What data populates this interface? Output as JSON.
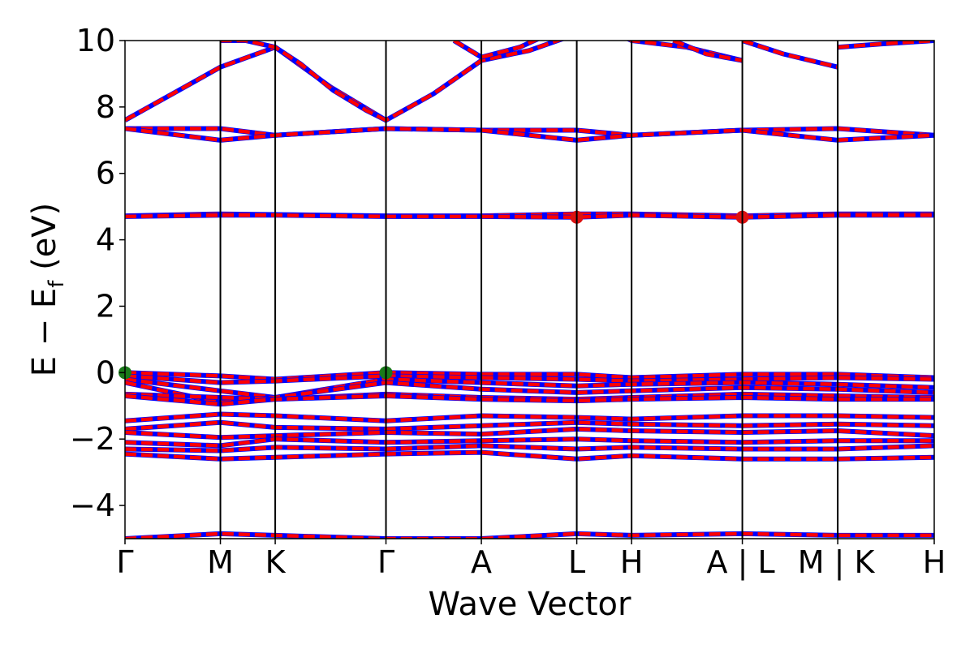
{
  "chart_data": {
    "type": "line",
    "title": "",
    "xlabel": "Wave Vector",
    "ylabel_main": "E − E",
    "ylabel_sub": "f",
    "ylabel_unit": " (eV)",
    "ylim": [
      -5,
      10
    ],
    "y_ticks": [
      {
        "value": -4,
        "label": "−4"
      },
      {
        "value": -2,
        "label": "−2"
      },
      {
        "value": 0,
        "label": "0"
      },
      {
        "value": 2,
        "label": "2"
      },
      {
        "value": 4,
        "label": "4"
      },
      {
        "value": 6,
        "label": "6"
      },
      {
        "value": 8,
        "label": "8"
      },
      {
        "value": 10,
        "label": "10"
      }
    ],
    "xlim": [
      0,
      7.38
    ],
    "kpoints": [
      {
        "x": 0.0,
        "label": "Γ"
      },
      {
        "x": 0.87,
        "label": "M"
      },
      {
        "x": 1.37,
        "label": "K"
      },
      {
        "x": 2.38,
        "label": "Γ"
      },
      {
        "x": 3.25,
        "label": "A"
      },
      {
        "x": 4.12,
        "label": "L"
      },
      {
        "x": 4.62,
        "label": "H"
      },
      {
        "x": 5.63,
        "label": "A | L"
      },
      {
        "x": 6.5,
        "label": "M | K"
      },
      {
        "x": 7.38,
        "label": "H"
      }
    ],
    "path_break_x": [
      5.63,
      6.5
    ],
    "band_colors": {
      "spin_up": "#ff0000",
      "spin_down": "#0000ff"
    },
    "series": [
      {
        "x": [
          0,
          0.435,
          0.87,
          1.37,
          1.875,
          2.38,
          2.815,
          3.25,
          3.685,
          4.12,
          4.37,
          4.62,
          5.125,
          5.63
        ],
        "y": [
          7.6,
          8.4,
          9.2,
          9.8,
          8.6,
          7.6,
          8.4,
          9.4,
          9.7,
          10.2,
          10.4,
          10.0,
          9.8,
          9.4
        ]
      },
      {
        "x": [
          0.87,
          1.1,
          1.37,
          1.6,
          1.9,
          2.2,
          2.38
        ],
        "y": [
          10.0,
          10.0,
          9.8,
          9.3,
          8.5,
          7.9,
          7.6
        ]
      },
      {
        "x": [
          3.0,
          3.25,
          3.6,
          3.8
        ],
        "y": [
          10.0,
          9.5,
          9.8,
          10.1
        ]
      },
      {
        "x": [
          5.0,
          5.3,
          5.63
        ],
        "y": [
          10.0,
          9.6,
          9.4
        ]
      },
      {
        "x": [
          5.63,
          6.0,
          6.5
        ],
        "y": [
          10.0,
          9.6,
          9.2
        ]
      },
      {
        "x": [
          6.5,
          6.9,
          7.38
        ],
        "y": [
          9.8,
          9.9,
          10.0
        ]
      },
      {
        "x": [
          0,
          0.87,
          1.37,
          2.38,
          3.25,
          4.12,
          4.62,
          5.63,
          6.5,
          7.38
        ],
        "y": [
          7.35,
          7.35,
          7.15,
          7.35,
          7.3,
          7.3,
          7.15,
          7.3,
          7.35,
          7.15
        ]
      },
      {
        "x": [
          0,
          0.87,
          1.37,
          2.38,
          3.25,
          4.12,
          4.62,
          5.63,
          6.5,
          7.38
        ],
        "y": [
          7.35,
          7.0,
          7.15,
          7.35,
          7.3,
          7.0,
          7.15,
          7.3,
          7.0,
          7.15
        ]
      },
      {
        "x": [
          0,
          0.87,
          1.37,
          2.38,
          3.25,
          4.12,
          4.62,
          5.63,
          6.5,
          7.38
        ],
        "y": [
          4.72,
          4.78,
          4.76,
          4.72,
          4.72,
          4.78,
          4.78,
          4.72,
          4.78,
          4.78
        ]
      },
      {
        "x": [
          0,
          0.87,
          1.37,
          2.38,
          3.25,
          4.12,
          4.62,
          5.63,
          6.5,
          7.38
        ],
        "y": [
          4.7,
          4.74,
          4.74,
          4.7,
          4.7,
          4.68,
          4.74,
          4.68,
          4.74,
          4.74
        ]
      },
      {
        "x": [
          0,
          0.87,
          1.37,
          2.38,
          3.25,
          4.12,
          4.62,
          5.63,
          6.5,
          7.38
        ],
        "y": [
          0.0,
          -0.1,
          -0.2,
          0.0,
          -0.05,
          -0.05,
          -0.15,
          -0.05,
          -0.05,
          -0.15
        ]
      },
      {
        "x": [
          0,
          0.87,
          1.37,
          2.38,
          3.25,
          4.12,
          4.62,
          5.63,
          6.5,
          7.38
        ],
        "y": [
          -0.1,
          -0.3,
          -0.25,
          -0.1,
          -0.15,
          -0.2,
          -0.25,
          -0.2,
          -0.15,
          -0.2
        ]
      },
      {
        "x": [
          0,
          0.87,
          1.37,
          2.38,
          3.25,
          4.12,
          4.62,
          5.63,
          6.5,
          7.38
        ],
        "y": [
          -0.2,
          -0.55,
          -0.75,
          -0.2,
          -0.3,
          -0.4,
          -0.35,
          -0.3,
          -0.35,
          -0.45
        ]
      },
      {
        "x": [
          0,
          0.87,
          1.37,
          2.38,
          3.25,
          4.12,
          4.62,
          5.63,
          6.5,
          7.38
        ],
        "y": [
          -0.3,
          -0.9,
          -0.75,
          -0.3,
          -0.5,
          -0.6,
          -0.55,
          -0.45,
          -0.5,
          -0.6
        ]
      },
      {
        "x": [
          0,
          0.87,
          1.37,
          2.38,
          3.25,
          4.12,
          4.62,
          5.63,
          6.5,
          7.38
        ],
        "y": [
          -0.65,
          -0.75,
          -0.8,
          -0.65,
          -0.75,
          -0.8,
          -0.75,
          -0.65,
          -0.7,
          -0.75
        ]
      },
      {
        "x": [
          0,
          0.87,
          1.37,
          2.38,
          3.25,
          4.12,
          4.62,
          5.63,
          6.5,
          7.38
        ],
        "y": [
          -0.7,
          -0.95,
          -0.8,
          -0.7,
          -0.8,
          -0.85,
          -0.8,
          -0.75,
          -0.8,
          -0.8
        ]
      },
      {
        "x": [
          0,
          0.87,
          1.37,
          2.38,
          3.25,
          4.12,
          4.62,
          5.63,
          6.5,
          7.38
        ],
        "y": [
          -1.45,
          -1.25,
          -1.3,
          -1.45,
          -1.3,
          -1.35,
          -1.4,
          -1.3,
          -1.3,
          -1.35
        ]
      },
      {
        "x": [
          0,
          0.87,
          1.37,
          2.38,
          3.25,
          4.12,
          4.62,
          5.63,
          6.5,
          7.38
        ],
        "y": [
          -1.7,
          -1.5,
          -1.65,
          -1.7,
          -1.6,
          -1.5,
          -1.55,
          -1.6,
          -1.55,
          -1.6
        ]
      },
      {
        "x": [
          0,
          0.87,
          1.37,
          2.38,
          3.25,
          4.12,
          4.62,
          5.63,
          6.5,
          7.38
        ],
        "y": [
          -1.8,
          -1.95,
          -1.9,
          -1.8,
          -1.85,
          -1.7,
          -1.75,
          -1.8,
          -1.75,
          -1.9
        ]
      },
      {
        "x": [
          0,
          0.87,
          1.37,
          2.38,
          3.25,
          4.12,
          4.62,
          5.63,
          6.5,
          7.38
        ],
        "y": [
          -2.1,
          -2.2,
          -2.0,
          -2.1,
          -2.05,
          -2.0,
          -2.05,
          -2.1,
          -2.05,
          -2.05
        ]
      },
      {
        "x": [
          0,
          0.87,
          1.37,
          2.38,
          3.25,
          4.12,
          4.62,
          5.63,
          6.5,
          7.38
        ],
        "y": [
          -2.3,
          -2.35,
          -2.25,
          -2.3,
          -2.2,
          -2.3,
          -2.25,
          -2.3,
          -2.3,
          -2.2
        ]
      },
      {
        "x": [
          0,
          0.87,
          1.37,
          2.38,
          3.25,
          4.12,
          4.62,
          5.63,
          6.5,
          7.38
        ],
        "y": [
          -2.45,
          -2.6,
          -2.55,
          -2.45,
          -2.4,
          -2.6,
          -2.5,
          -2.6,
          -2.6,
          -2.55
        ]
      },
      {
        "x": [
          0,
          0.87,
          1.37,
          2.38,
          3.25,
          4.12,
          4.62,
          5.63,
          6.5,
          7.38
        ],
        "y": [
          -5.0,
          -4.85,
          -4.9,
          -5.0,
          -5.0,
          -4.85,
          -4.9,
          -4.85,
          -4.9,
          -4.9
        ]
      }
    ],
    "markers": [
      {
        "x": 0.0,
        "y": 0.0,
        "color": "#1a7a1a"
      },
      {
        "x": 2.38,
        "y": 0.0,
        "color": "#1a7a1a"
      },
      {
        "x": 4.12,
        "y": 4.68,
        "color": "#dd1111"
      },
      {
        "x": 5.63,
        "y": 4.68,
        "color": "#dd1111"
      }
    ]
  }
}
